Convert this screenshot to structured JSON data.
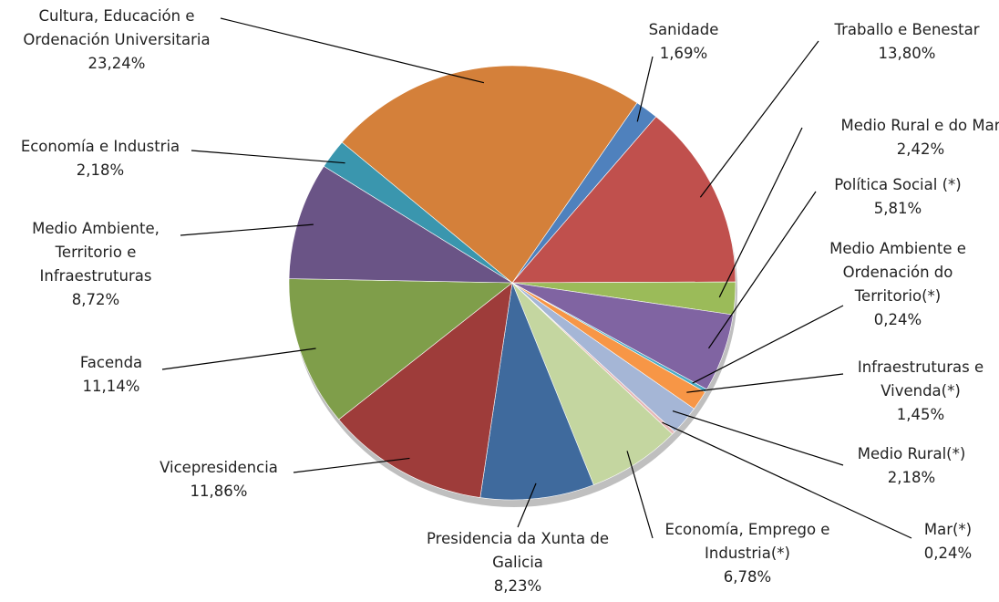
{
  "chart_data": {
    "type": "pie",
    "categories": [
      "Sanidade",
      "Traballo e Benestar",
      "Medio Rural e do Mar",
      "Política Social (*)",
      "Medio Ambiente e Ordenación do Territorio(*)",
      "Infraestruturas e Vivenda(*)",
      "Medio Rural(*)",
      "Mar(*)",
      "Economía, Emprego e Industria(*)",
      "Presidencia da Xunta de Galicia",
      "Vicepresidencia",
      "Facenda",
      "Medio Ambiente, Territorio e Infraestruturas",
      "Economía e Industria",
      "Cultura, Educación e Ordenación Universitaria"
    ],
    "values": [
      1.69,
      13.8,
      2.42,
      5.81,
      0.24,
      1.45,
      2.18,
      0.24,
      6.78,
      8.23,
      11.86,
      11.14,
      8.72,
      2.18,
      23.24
    ],
    "value_labels": [
      "1,69%",
      "13,80%",
      "2,42%",
      "5,81%",
      "0,24%",
      "1,45%",
      "2,18%",
      "0,24%",
      "6,78%",
      "8,23%",
      "11,86%",
      "11,14%",
      "8,72%",
      "2,18%",
      "23,24%"
    ],
    "colors": [
      "#4f81bd",
      "#c0504d",
      "#9bbb59",
      "#8064a2",
      "#4bacc6",
      "#f79646",
      "#a5b6d6",
      "#e6b9b8",
      "#c4d6a0",
      "#3f6a9d",
      "#9e3c3a",
      "#7f9e4a",
      "#6a5486",
      "#3a96ae",
      "#d4803a"
    ]
  }
}
